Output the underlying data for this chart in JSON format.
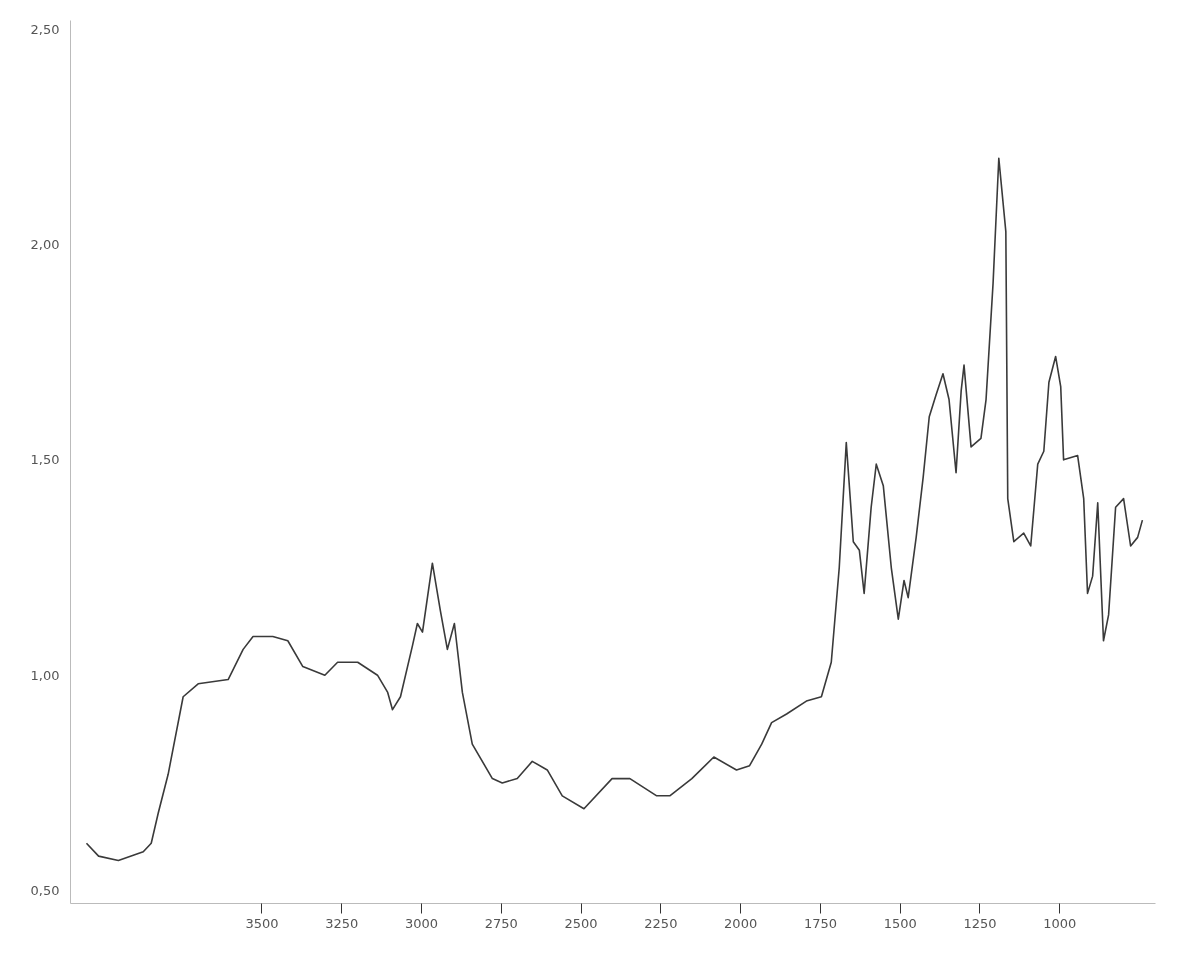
{
  "chart_data": {
    "type": "line",
    "grid": false,
    "marker": "none",
    "line_style": "solid",
    "xlim": [
      4100,
      700
    ],
    "ylim": [
      0.47,
      2.52
    ],
    "xticks": [
      3500,
      3250,
      3000,
      2750,
      2500,
      2250,
      2000,
      1750,
      1500,
      1250,
      1000
    ],
    "yticks": [
      {
        "value": 0.5,
        "label": "0,50"
      },
      {
        "value": 1.0,
        "label": "1,00"
      },
      {
        "value": 1.5,
        "label": "1,50"
      },
      {
        "value": 2.0,
        "label": "2,00"
      },
      {
        "value": 2.5,
        "label": "2,50"
      }
    ],
    "series": [
      {
        "color": "#3a3a3a",
        "x": [
          4050,
          4012,
          3950,
          3872,
          3847,
          3825,
          3794,
          3747,
          3700,
          3606,
          3559,
          3528,
          3466,
          3419,
          3372,
          3303,
          3263,
          3200,
          3138,
          3106,
          3091,
          3066,
          3028,
          3013,
          2997,
          2966,
          2941,
          2919,
          2897,
          2872,
          2841,
          2778,
          2747,
          2700,
          2653,
          2606,
          2559,
          2491,
          2403,
          2347,
          2263,
          2222,
          2153,
          2084,
          2013,
          1972,
          1934,
          1903,
          1856,
          1794,
          1747,
          1716,
          1691,
          1669,
          1647,
          1628,
          1613,
          1591,
          1575,
          1553,
          1528,
          1506,
          1488,
          1475,
          1450,
          1428,
          1409,
          1388,
          1366,
          1347,
          1325,
          1309,
          1300,
          1278,
          1247,
          1231,
          1209,
          1191,
          1169,
          1163,
          1144,
          1113,
          1091,
          1069,
          1050,
          1034,
          1013,
          997,
          988,
          944,
          925,
          913,
          897,
          881,
          863,
          847,
          825,
          800,
          778,
          756,
          741
        ],
        "values": [
          0.61,
          0.58,
          0.57,
          0.59,
          0.61,
          0.68,
          0.77,
          0.95,
          0.98,
          0.99,
          1.06,
          1.09,
          1.09,
          1.08,
          1.02,
          1.0,
          1.03,
          1.03,
          1.0,
          0.96,
          0.92,
          0.95,
          1.07,
          1.12,
          1.1,
          1.26,
          1.15,
          1.06,
          1.12,
          0.96,
          0.84,
          0.76,
          0.75,
          0.76,
          0.8,
          0.78,
          0.72,
          0.69,
          0.76,
          0.76,
          0.72,
          0.72,
          0.76,
          0.81,
          0.78,
          0.79,
          0.84,
          0.89,
          0.91,
          0.94,
          0.95,
          1.03,
          1.25,
          1.54,
          1.31,
          1.29,
          1.19,
          1.39,
          1.49,
          1.44,
          1.25,
          1.13,
          1.22,
          1.18,
          1.32,
          1.46,
          1.6,
          1.65,
          1.7,
          1.64,
          1.47,
          1.66,
          1.72,
          1.53,
          1.55,
          1.64,
          1.91,
          2.2,
          2.03,
          1.41,
          1.31,
          1.33,
          1.3,
          1.49,
          1.52,
          1.68,
          1.74,
          1.67,
          1.5,
          1.51,
          1.41,
          1.19,
          1.23,
          1.4,
          1.08,
          1.14,
          1.39,
          1.41,
          1.3,
          1.32,
          1.36
        ]
      }
    ]
  }
}
